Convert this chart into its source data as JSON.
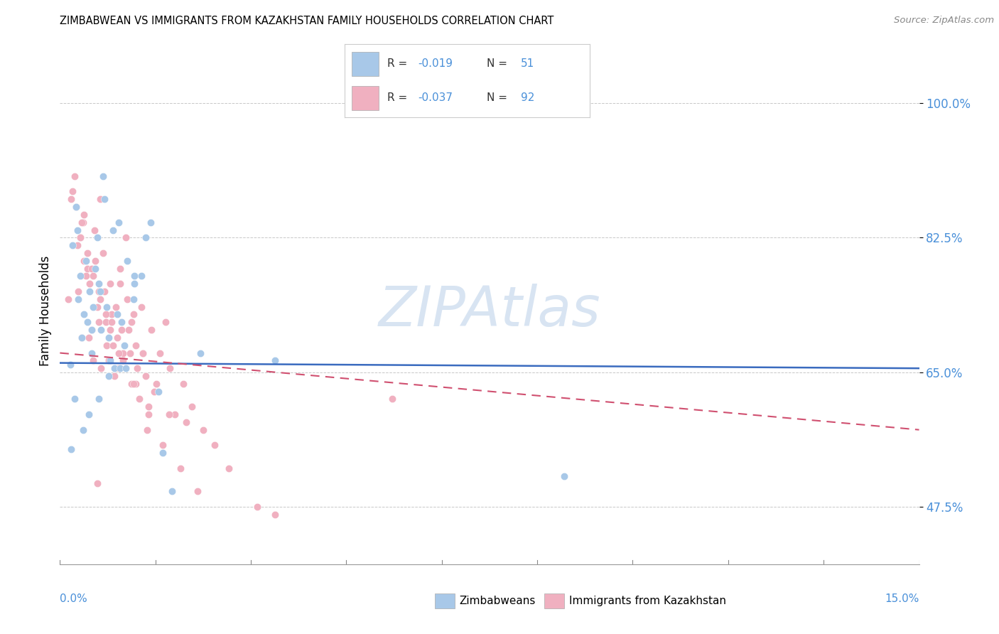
{
  "title": "ZIMBABWEAN VS IMMIGRANTS FROM KAZAKHSTAN FAMILY HOUSEHOLDS CORRELATION CHART",
  "source": "Source: ZipAtlas.com",
  "ylabel": "Family Households",
  "y_ticks": [
    47.5,
    65.0,
    82.5,
    100.0
  ],
  "y_tick_labels": [
    "47.5%",
    "65.0%",
    "82.5%",
    "100.0%"
  ],
  "xlim": [
    0.0,
    15.0
  ],
  "ylim": [
    40.0,
    106.0
  ],
  "blue_color": "#a8c8e8",
  "pink_color": "#f0b0c0",
  "blue_line_color": "#3a6bbf",
  "pink_line_color": "#d05070",
  "watermark": "ZIPAtlas",
  "blue_trend_x0": 0.0,
  "blue_trend_y0": 66.2,
  "blue_trend_x1": 15.0,
  "blue_trend_y1": 65.5,
  "pink_trend_x0": 0.0,
  "pink_trend_y0": 67.5,
  "pink_trend_x1": 15.0,
  "pink_trend_y1": 57.5,
  "zimbabweans_x": [
    0.18,
    0.22,
    0.28,
    0.32,
    0.35,
    0.38,
    0.42,
    0.45,
    0.48,
    0.52,
    0.55,
    0.58,
    0.62,
    0.65,
    0.68,
    0.72,
    0.75,
    0.78,
    0.82,
    0.85,
    0.92,
    0.95,
    1.02,
    1.05,
    1.12,
    1.18,
    1.28,
    1.42,
    1.58,
    1.72,
    1.95,
    2.45,
    3.75,
    0.25,
    0.4,
    0.55,
    0.7,
    0.85,
    1.0,
    1.15,
    1.3,
    1.5,
    1.8,
    0.3,
    0.5,
    0.68,
    0.88,
    1.08,
    1.3,
    8.8,
    0.2
  ],
  "zimbabweans_y": [
    66.0,
    81.5,
    86.5,
    74.5,
    77.5,
    69.5,
    72.5,
    79.5,
    71.5,
    75.5,
    67.5,
    73.5,
    78.5,
    82.5,
    76.5,
    70.5,
    90.5,
    87.5,
    73.5,
    69.5,
    83.5,
    65.5,
    84.5,
    65.5,
    68.5,
    79.5,
    74.5,
    77.5,
    84.5,
    62.5,
    49.5,
    67.5,
    66.5,
    61.5,
    57.5,
    70.5,
    75.5,
    64.5,
    72.5,
    65.5,
    76.5,
    82.5,
    54.5,
    83.5,
    59.5,
    61.5,
    66.5,
    71.5,
    77.5,
    51.5,
    55.0
  ],
  "kazakhstan_x": [
    0.15,
    0.2,
    0.25,
    0.3,
    0.32,
    0.35,
    0.38,
    0.4,
    0.42,
    0.45,
    0.48,
    0.5,
    0.52,
    0.55,
    0.58,
    0.6,
    0.62,
    0.65,
    0.68,
    0.7,
    0.72,
    0.75,
    0.78,
    0.8,
    0.82,
    0.85,
    0.88,
    0.9,
    0.92,
    0.95,
    0.98,
    1.0,
    1.02,
    1.05,
    1.08,
    1.1,
    1.15,
    1.18,
    1.2,
    1.22,
    1.25,
    1.28,
    1.32,
    1.35,
    1.38,
    1.42,
    1.45,
    1.5,
    1.55,
    1.6,
    1.68,
    1.75,
    1.85,
    1.92,
    2.0,
    2.15,
    2.3,
    2.5,
    2.7,
    2.95,
    0.22,
    0.38,
    0.55,
    0.7,
    0.88,
    1.05,
    1.25,
    1.45,
    1.65,
    1.9,
    2.2,
    0.28,
    0.48,
    0.68,
    0.9,
    1.1,
    1.32,
    1.55,
    1.8,
    2.1,
    2.4,
    3.45,
    0.35,
    0.58,
    0.8,
    1.02,
    1.28,
    1.52,
    3.75,
    5.8,
    0.42,
    0.65
  ],
  "kazakhstan_y": [
    74.5,
    87.5,
    90.5,
    81.5,
    75.5,
    82.5,
    69.5,
    84.5,
    85.5,
    77.5,
    78.5,
    69.5,
    76.5,
    70.5,
    66.5,
    83.5,
    79.5,
    73.5,
    71.5,
    87.5,
    65.5,
    80.5,
    75.5,
    71.5,
    68.5,
    66.5,
    76.5,
    72.5,
    68.5,
    64.5,
    73.5,
    69.5,
    65.5,
    78.5,
    70.5,
    66.5,
    82.5,
    74.5,
    70.5,
    67.5,
    63.5,
    72.5,
    68.5,
    65.5,
    61.5,
    73.5,
    67.5,
    64.5,
    60.5,
    70.5,
    63.5,
    67.5,
    71.5,
    65.5,
    59.5,
    63.5,
    60.5,
    57.5,
    55.5,
    52.5,
    88.5,
    84.5,
    78.5,
    74.5,
    70.5,
    76.5,
    71.5,
    67.5,
    62.5,
    59.5,
    58.5,
    86.5,
    80.5,
    75.5,
    71.5,
    67.5,
    63.5,
    59.5,
    55.5,
    52.5,
    49.5,
    47.5,
    82.5,
    77.5,
    72.5,
    67.5,
    63.5,
    57.5,
    46.5,
    61.5,
    79.5,
    50.5
  ]
}
